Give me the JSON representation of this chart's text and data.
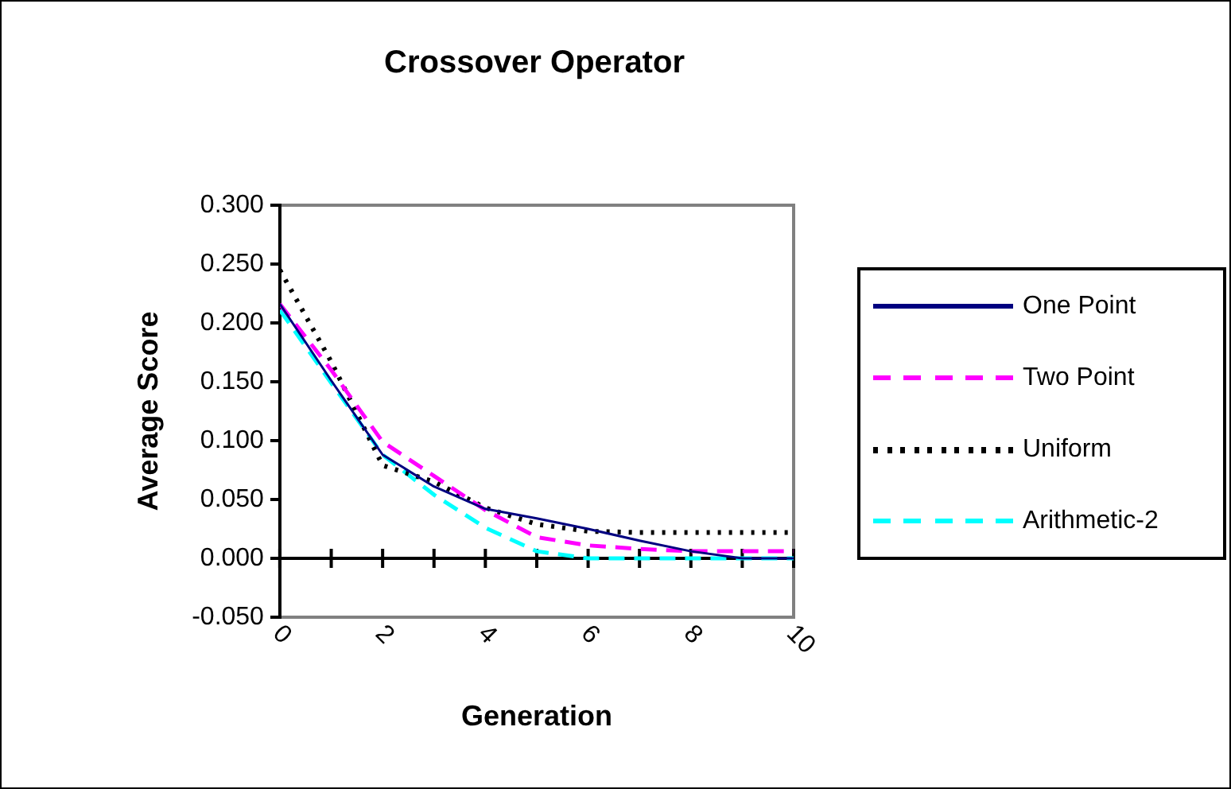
{
  "chart_data": {
    "type": "line",
    "title": "Crossover Operator",
    "xlabel": "Generation",
    "ylabel": "Average Score",
    "x": [
      0,
      1,
      2,
      3,
      4,
      5,
      6,
      7,
      8,
      9,
      10
    ],
    "xlim": [
      0,
      10
    ],
    "xticks": [
      0,
      {
        "value": 1,
        "label": null
      },
      2,
      {
        "value": 3,
        "label": null
      },
      4,
      {
        "value": 5,
        "label": null
      },
      6,
      {
        "value": 7,
        "label": null
      },
      8,
      {
        "value": 9,
        "label": null
      },
      10
    ],
    "ylim": [
      -0.05,
      0.3
    ],
    "yticks": [
      {
        "value": -0.05,
        "label": "-0.050"
      },
      {
        "value": 0,
        "label": "0.000"
      },
      {
        "value": 0.05,
        "label": "0.050"
      },
      {
        "value": 0.1,
        "label": "0.100"
      },
      {
        "value": 0.15,
        "label": "0.150"
      },
      {
        "value": 0.2,
        "label": "0.200"
      },
      {
        "value": 0.25,
        "label": "0.250"
      },
      {
        "value": 0.3,
        "label": "0.300"
      }
    ],
    "series": [
      {
        "name": "One Point",
        "color": "#000080",
        "line_style": "solid",
        "values": [
          0.216,
          0.151,
          0.088,
          0.061,
          0.042,
          0.034,
          0.025,
          0.015,
          0.006,
          0,
          0
        ]
      },
      {
        "name": "Two Point",
        "color": "#ff00ff",
        "line_style": "dashed",
        "values": [
          0.216,
          0.16,
          0.099,
          0.07,
          0.041,
          0.018,
          0.011,
          0.008,
          0.006,
          0.006,
          0.006
        ]
      },
      {
        "name": "Uniform",
        "color": "#000000",
        "line_style": "dotted",
        "values": [
          0.245,
          0.167,
          0.079,
          0.065,
          0.043,
          0.029,
          0.023,
          0.022,
          0.022,
          0.022,
          0.022
        ]
      },
      {
        "name": "Arithmetic-2",
        "color": "#00ffff",
        "line_style": "dashed",
        "values": [
          0.211,
          0.149,
          0.088,
          0.054,
          0.026,
          0.006,
          0,
          0,
          0,
          0,
          0
        ]
      }
    ],
    "legend": "right",
    "marker": "none"
  }
}
